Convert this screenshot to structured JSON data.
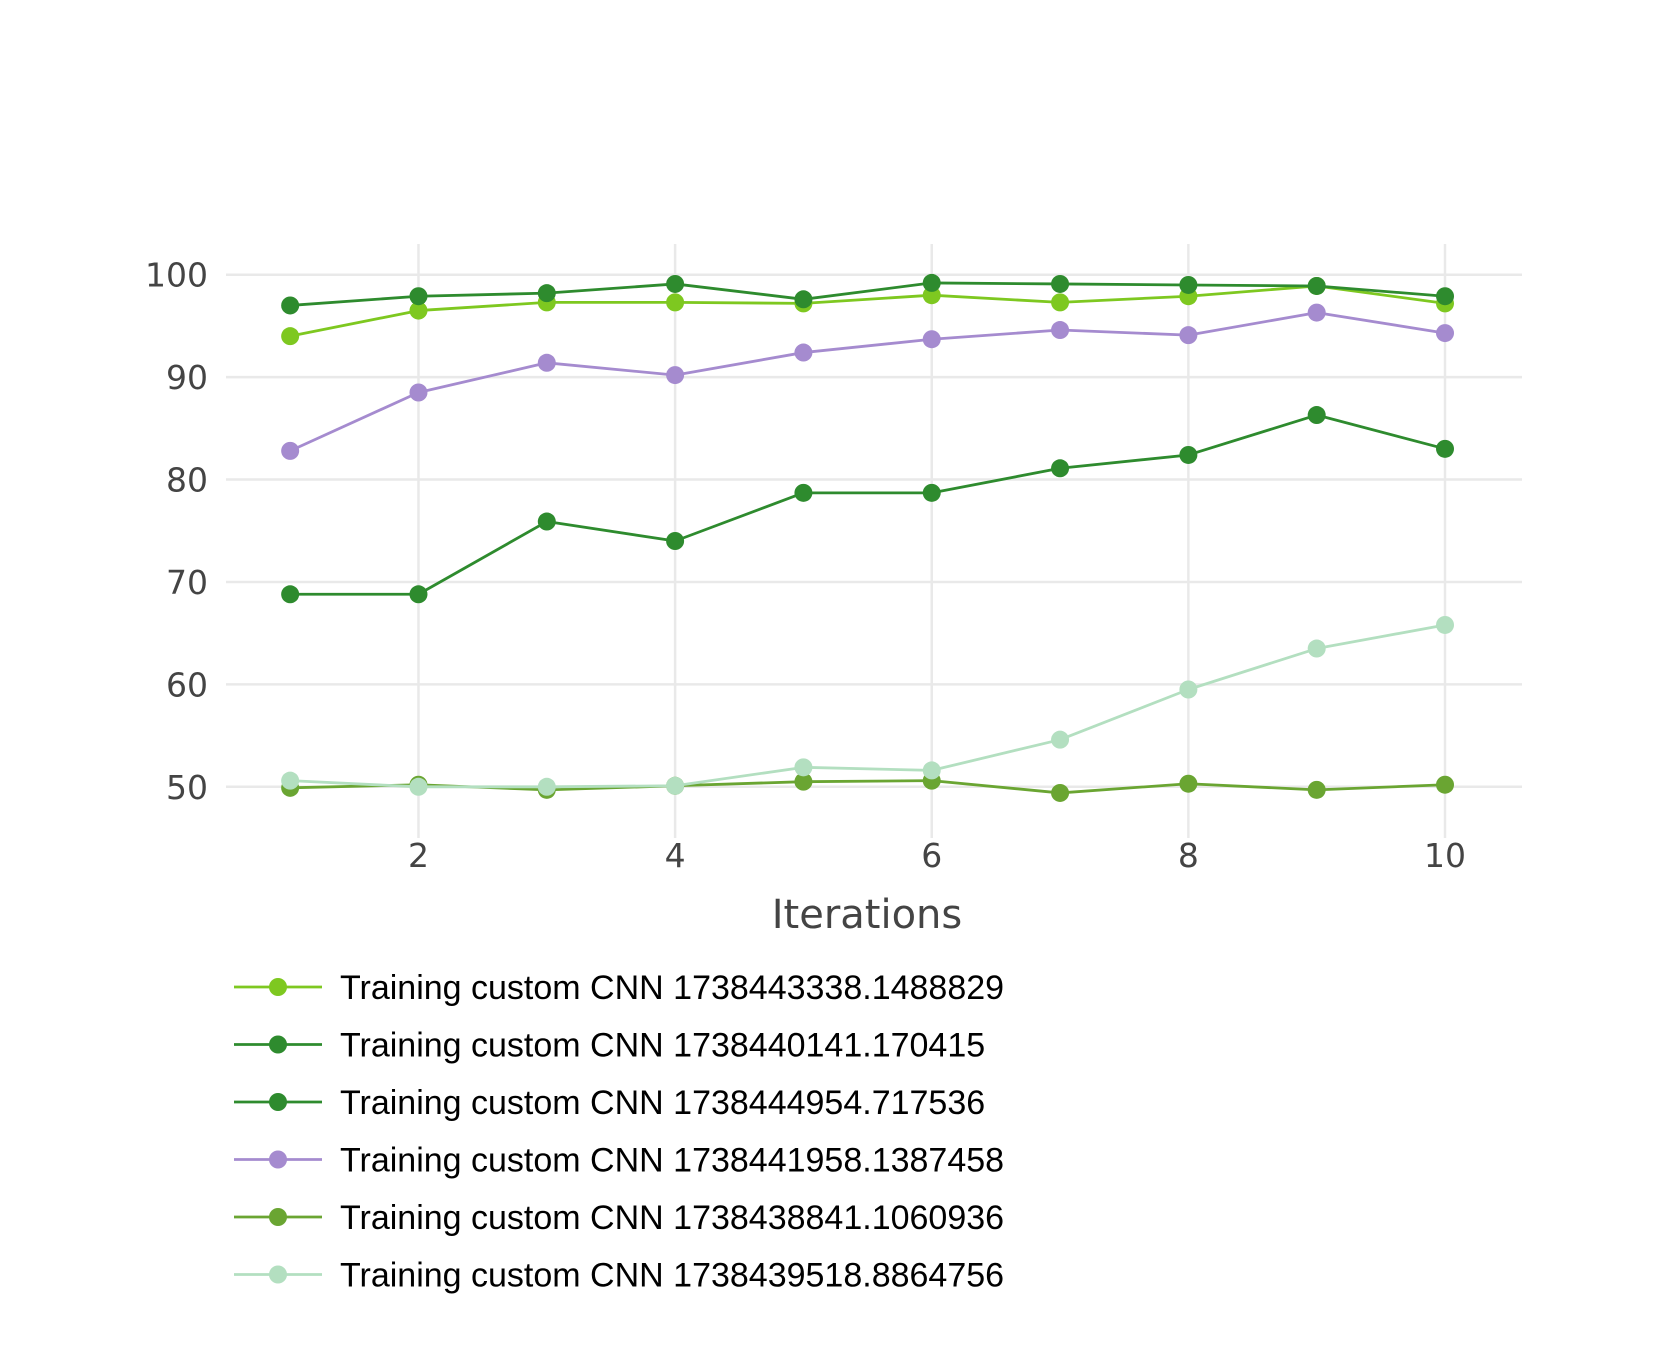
{
  "chart_data": {
    "type": "line",
    "title": "",
    "xlabel": "Iterations",
    "ylabel": "",
    "x": [
      1,
      2,
      3,
      4,
      5,
      6,
      7,
      8,
      9,
      10
    ],
    "xlim": [
      0.5,
      10.6
    ],
    "ylim": [
      45,
      103
    ],
    "x_ticks": [
      2,
      4,
      6,
      8,
      10
    ],
    "y_ticks": [
      50,
      60,
      70,
      80,
      90,
      100
    ],
    "grid": true,
    "legend_placement": "bottom-left",
    "series": [
      {
        "name": "Training custom CNN 1738443338.1488829",
        "color": "#7ec820",
        "values": [
          94.0,
          96.5,
          97.3,
          97.3,
          97.2,
          98.0,
          97.3,
          97.9,
          98.9,
          97.2
        ]
      },
      {
        "name": "Training custom CNN 1738440141.170415",
        "color": "#2e8b2e",
        "values": [
          97.0,
          97.9,
          98.2,
          99.1,
          97.6,
          99.2,
          99.1,
          99.0,
          98.9,
          97.9
        ]
      },
      {
        "name": "Training custom CNN 1738444954.717536",
        "color": "#2e8b2e",
        "values": [
          68.8,
          68.8,
          75.9,
          74.0,
          78.7,
          78.7,
          81.1,
          82.4,
          86.3,
          83.0
        ]
      },
      {
        "name": "Training custom CNN 1738441958.1387458",
        "color": "#a58bcf",
        "values": [
          82.8,
          88.5,
          91.4,
          90.2,
          92.4,
          93.7,
          94.6,
          94.1,
          96.3,
          94.3
        ]
      },
      {
        "name": "Training custom CNN 1738438841.1060936",
        "color": "#6aa532",
        "values": [
          49.9,
          50.2,
          49.7,
          50.1,
          50.5,
          50.6,
          49.4,
          50.3,
          49.7,
          50.2
        ]
      },
      {
        "name": "Training custom CNN 1738439518.8864756",
        "color": "#b3dfc0",
        "values": [
          50.6,
          50.0,
          50.0,
          50.1,
          51.9,
          51.6,
          54.6,
          59.5,
          63.5,
          65.8
        ]
      }
    ]
  }
}
